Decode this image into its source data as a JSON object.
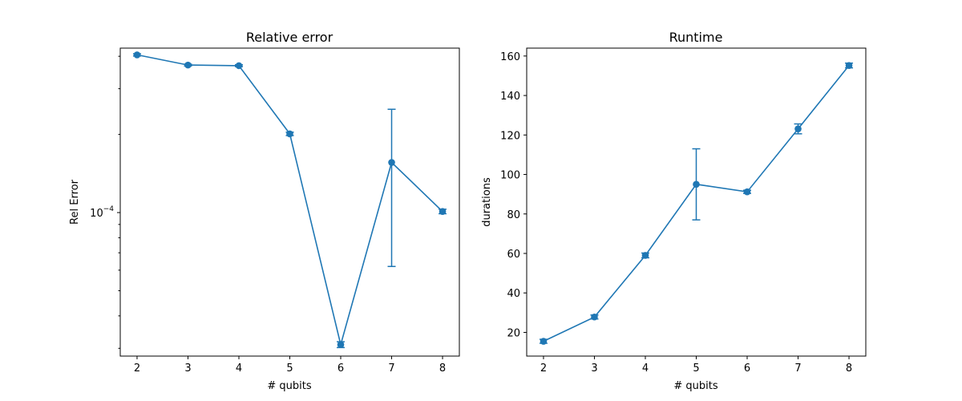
{
  "chart_data": [
    {
      "type": "line",
      "title": "Relative error",
      "xlabel": "# qubits",
      "ylabel": "Rel Error",
      "yscale": "log",
      "x": [
        2,
        3,
        4,
        5,
        6,
        7,
        8
      ],
      "xticks": [
        "2",
        "3",
        "4",
        "5",
        "6",
        "7",
        "8"
      ],
      "ylim": [
        2.8e-05,
        0.00043
      ],
      "yticks": [
        {
          "value": 0.0001,
          "label": "10",
          "exp": "−4"
        }
      ],
      "yminor": [
        3e-05,
        4e-05,
        5e-05,
        6e-05,
        7e-05,
        8e-05,
        9e-05,
        0.0002,
        0.0003,
        0.0004
      ],
      "series": [
        {
          "values": [
            0.000405,
            0.00037,
            0.000368,
            0.000201,
            3.1e-05,
            0.000156,
            0.000101
          ],
          "errors": [
            4e-06,
            3e-06,
            3e-06,
            3e-06,
            8e-07,
            9.4e-05,
            2e-06
          ],
          "color": "#1f77b4",
          "marker": "circle"
        }
      ],
      "grid": false
    },
    {
      "type": "line",
      "title": "Runtime",
      "xlabel": "# qubits",
      "ylabel": "durations",
      "yscale": "linear",
      "x": [
        2,
        3,
        4,
        5,
        6,
        7,
        8
      ],
      "xticks": [
        "2",
        "3",
        "4",
        "5",
        "6",
        "7",
        "8"
      ],
      "ylim": [
        8,
        164
      ],
      "yticks": [
        {
          "value": 20,
          "label": "20"
        },
        {
          "value": 40,
          "label": "40"
        },
        {
          "value": 60,
          "label": "60"
        },
        {
          "value": 80,
          "label": "80"
        },
        {
          "value": 100,
          "label": "100"
        },
        {
          "value": 120,
          "label": "120"
        },
        {
          "value": 140,
          "label": "140"
        },
        {
          "value": 160,
          "label": "160"
        }
      ],
      "series": [
        {
          "values": [
            15.5,
            27.8,
            59.0,
            95.0,
            91.2,
            123.1,
            155.2
          ],
          "errors": [
            1.0,
            1.0,
            1.2,
            18.0,
            0.8,
            2.5,
            1.2
          ],
          "color": "#1f77b4",
          "marker": "circle"
        }
      ],
      "grid": false
    }
  ]
}
